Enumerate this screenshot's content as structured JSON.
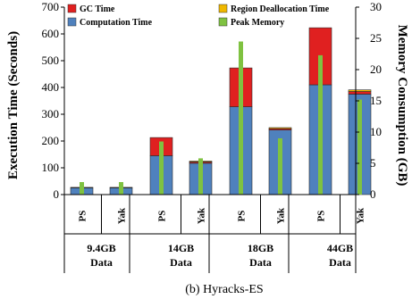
{
  "chart_data": {
    "type": "bar",
    "stacked": true,
    "caption": "(b) Hyracks-ES",
    "ylabel_left": "Execution Time (Seconds)",
    "ylabel_right": "Memory Consumption (GB)",
    "ylim_left": [
      0,
      700
    ],
    "yticks_left": [
      "0",
      "100",
      "200",
      "300",
      "400",
      "500",
      "600",
      "700"
    ],
    "ylim_right": [
      0,
      30
    ],
    "yticks_right": [
      "0",
      "5",
      "10",
      "15",
      "20",
      "25",
      "30"
    ],
    "groups": [
      {
        "label_line1": "9.4GB",
        "label_line2": "Data"
      },
      {
        "label_line1": "14GB",
        "label_line2": "Data"
      },
      {
        "label_line1": "18GB",
        "label_line2": "Data"
      },
      {
        "label_line1": "44GB",
        "label_line2": "Data"
      }
    ],
    "systems": [
      "PS",
      "Yak"
    ],
    "series": [
      {
        "name": "Computation Time",
        "color": "#4f81bd",
        "values": [
          [
            25,
            25
          ],
          [
            145,
            117
          ],
          [
            328,
            241
          ],
          [
            410,
            375
          ]
        ]
      },
      {
        "name": "GC Time",
        "color": "#e02020",
        "values": [
          [
            2,
            2
          ],
          [
            68,
            5
          ],
          [
            145,
            5
          ],
          [
            213,
            10
          ]
        ]
      },
      {
        "name": "Region Deallocation Time",
        "color": "#f0b800",
        "values": [
          [
            0,
            0
          ],
          [
            0,
            3
          ],
          [
            0,
            4
          ],
          [
            0,
            6
          ]
        ]
      }
    ],
    "peak_memory": {
      "name": "Peak Memory",
      "color": "#7fc241",
      "values": [
        [
          2,
          2
        ],
        [
          8.5,
          5.8
        ],
        [
          24.5,
          9
        ],
        [
          22.3,
          15.2
        ]
      ]
    },
    "legend": [
      "GC Time",
      "Region Deallocation Time",
      "Computation Time",
      "Peak Memory"
    ]
  }
}
